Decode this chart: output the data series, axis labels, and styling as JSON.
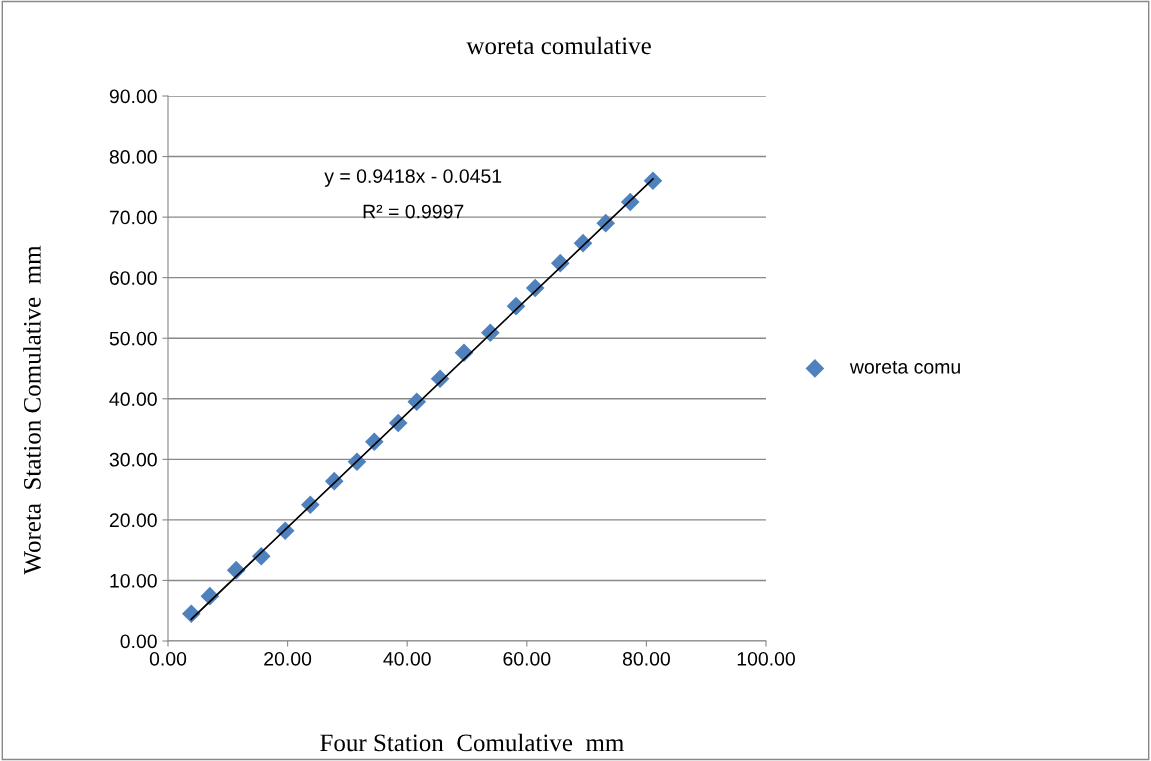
{
  "chart_data": {
    "type": "scatter",
    "title": "woreta comulative",
    "xlabel": "Four Station  Comulative  mm",
    "ylabel": "Woreta  Station Comulative  mm",
    "annotations": [
      "y = 0.9418x - 0.0451",
      "R² = 0.9997"
    ],
    "xlim": [
      0,
      100
    ],
    "xticks": [
      {
        "value": 0,
        "label": "0.00"
      },
      {
        "value": 20,
        "label": "20.00"
      },
      {
        "value": 40,
        "label": "40.00"
      },
      {
        "value": 60,
        "label": "60.00"
      },
      {
        "value": 80,
        "label": "80.00"
      },
      {
        "value": 100,
        "label": "100.00"
      }
    ],
    "ylim": [
      0,
      90
    ],
    "yticks": [
      {
        "value": 0,
        "label": "0.00"
      },
      {
        "value": 10,
        "label": "10.00"
      },
      {
        "value": 20,
        "label": "20.00"
      },
      {
        "value": 30,
        "label": "30.00"
      },
      {
        "value": 40,
        "label": "40.00"
      },
      {
        "value": 50,
        "label": "50.00"
      },
      {
        "value": 60,
        "label": "60.00"
      },
      {
        "value": 70,
        "label": "70.00"
      },
      {
        "value": 80,
        "label": "80.00"
      },
      {
        "value": 90,
        "label": "90.00"
      }
    ],
    "grid": "y",
    "legend": "right",
    "series": [
      {
        "name": "woreta comu",
        "color": "#4f81bd",
        "marker": "diamond",
        "x": [
          3.9,
          7.0,
          11.4,
          15.6,
          19.6,
          23.8,
          27.8,
          31.6,
          34.5,
          38.5,
          41.6,
          45.5,
          49.5,
          53.9,
          58.2,
          61.4,
          65.6,
          69.4,
          73.2,
          77.3,
          81.1
        ],
        "values": [
          4.5,
          7.4,
          11.7,
          14.0,
          18.2,
          22.5,
          26.4,
          29.6,
          32.9,
          36.0,
          39.5,
          43.3,
          47.6,
          50.9,
          55.3,
          58.3,
          62.4,
          65.7,
          69.0,
          72.5,
          76.0
        ]
      },
      {
        "type": "line",
        "color": "#000000",
        "marker": "none",
        "line_style": "solid",
        "x": [
          3.9,
          81.1
        ],
        "values": [
          3.6,
          76.3
        ]
      }
    ]
  }
}
